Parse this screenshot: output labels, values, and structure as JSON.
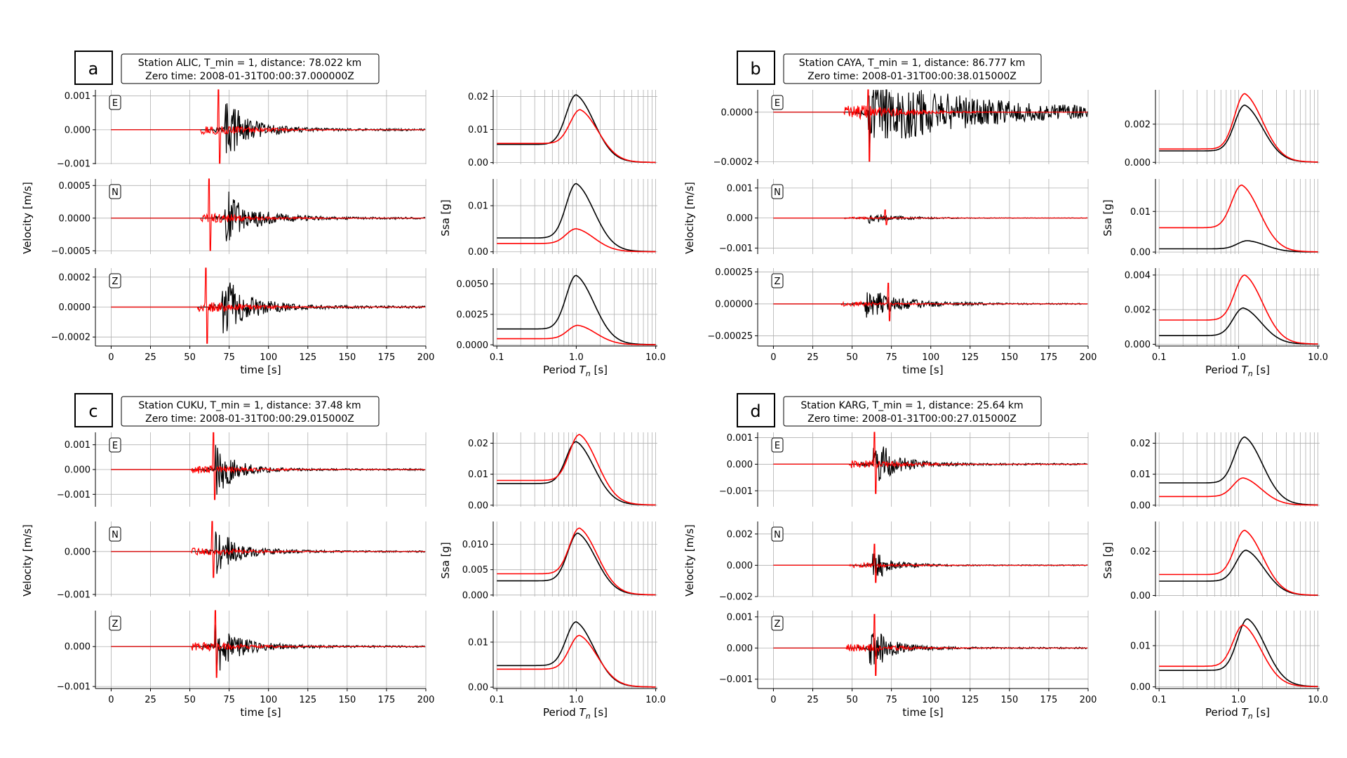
{
  "common": {
    "velocity_ylabel": "Velocity [m/s]",
    "ssa_ylabel": "Ssa [g]",
    "time_xlabel": "time [s]",
    "period_xlabel_pre": "Period ",
    "period_xlabel_sym": "T",
    "period_xlabel_sub": "n",
    "period_xlabel_post": " [s]",
    "time_xticks": [
      "0",
      "25",
      "50",
      "75",
      "100",
      "125",
      "150",
      "175",
      "200"
    ],
    "period_xticks": [
      "0.1",
      "1.0",
      "10.0"
    ],
    "colors": {
      "observed": "#000000",
      "synthetic": "#ff0000",
      "grid": "#b0b0b0"
    }
  },
  "chart_data": [
    {
      "type": "line",
      "panel_letter": "a",
      "title_line1": "Station ALIC,   T_min = 1,   distance: 78.022 km",
      "title_line2": "Zero time: 2008-01-31T00:00:37.000000Z",
      "components": [
        {
          "label": "E",
          "yticks": [
            "0.001",
            "0.000",
            "−0.001"
          ],
          "ylim": [
            -0.00102,
            0.00118
          ],
          "amp": 0.0009,
          "onset": 72,
          "red_spike": 68,
          "duration": 50,
          "xlim": [
            -10,
            200
          ],
          "spectrum": {
            "yticks": [
              "0.02",
              "0.01",
              "0.00"
            ],
            "ylim": [
              -0.0005,
              0.022
            ],
            "black": {
              "base": 0.0055,
              "peak": 0.0205,
              "period": 1.0
            },
            "red": {
              "base": 0.0058,
              "peak": 0.016,
              "period": 1.12
            }
          }
        },
        {
          "label": "N",
          "yticks": [
            "0.0005",
            "0.0000",
            "−0.0005"
          ],
          "ylim": [
            -0.00055,
            0.0006
          ],
          "amp": 0.00045,
          "onset": 72,
          "red_spike": 62,
          "duration": 55,
          "xlim": [
            -10,
            200
          ],
          "spectrum": {
            "yticks": [
              "0.01",
              "0.00"
            ],
            "ylim": [
              -0.0005,
              0.0158
            ],
            "black": {
              "base": 0.003,
              "peak": 0.0148,
              "period": 1.0
            },
            "red": {
              "base": 0.0018,
              "peak": 0.005,
              "period": 1.0
            }
          }
        },
        {
          "label": "Z",
          "yticks": [
            "0.0002",
            "0.0000",
            "−0.0002"
          ],
          "ylim": [
            -0.00026,
            0.00026
          ],
          "amp": 0.00022,
          "onset": 70,
          "red_spike": 60,
          "duration": 55,
          "xlim": [
            -10,
            200
          ],
          "spectrum": {
            "yticks": [
              "0.0050",
              "0.0025",
              "0.0000"
            ],
            "ylim": [
              -0.0001,
              0.0063
            ],
            "black": {
              "base": 0.0013,
              "peak": 0.0057,
              "period": 1.0
            },
            "red": {
              "base": 0.0005,
              "peak": 0.0016,
              "period": 1.05
            }
          }
        }
      ]
    },
    {
      "type": "line",
      "panel_letter": "b",
      "title_line1": "Station CAYA,   T_min = 1,   distance: 86.777 km",
      "title_line2": "Zero time: 2008-01-31T00:00:38.015000Z",
      "components": [
        {
          "label": "E",
          "yticks": [
            "0.0000",
            "−0.0002"
          ],
          "ylim": [
            -0.00021,
            9e-05
          ],
          "amp": 0.00018,
          "onset": 60,
          "red_spike": 60,
          "duration": 200,
          "xlim": [
            -10,
            200
          ],
          "spectrum": {
            "yticks": [
              "0.002",
              "0.000"
            ],
            "ylim": [
              -0.0001,
              0.0038
            ],
            "black": {
              "base": 0.0006,
              "peak": 0.003,
              "period": 1.2
            },
            "red": {
              "base": 0.0007,
              "peak": 0.0036,
              "period": 1.2
            }
          }
        },
        {
          "label": "N",
          "yticks": [
            "0.001",
            "0.000",
            "−0.001"
          ],
          "ylim": [
            -0.0012,
            0.0013
          ],
          "amp": 0.0002,
          "onset": 60,
          "red_spike": 71,
          "duration": 60,
          "xlim": [
            -10,
            200
          ],
          "spectrum": {
            "yticks": [
              "0.01",
              "0.00"
            ],
            "ylim": [
              -0.0005,
              0.018
            ],
            "black": {
              "base": 0.0008,
              "peak": 0.0028,
              "period": 1.3
            },
            "red": {
              "base": 0.006,
              "peak": 0.0165,
              "period": 1.1
            }
          }
        },
        {
          "label": "Z",
          "yticks": [
            "0.00025",
            "0.00000",
            "−0.00025"
          ],
          "ylim": [
            -0.00033,
            0.00028
          ],
          "amp": 0.00012,
          "onset": 58,
          "red_spike": 73,
          "duration": 80,
          "xlim": [
            -10,
            200
          ],
          "spectrum": {
            "yticks": [
              "0.004",
              "0.002",
              "0.000"
            ],
            "ylim": [
              -0.0001,
              0.0044
            ],
            "black": {
              "base": 0.0005,
              "peak": 0.0021,
              "period": 1.15
            },
            "red": {
              "base": 0.0014,
              "peak": 0.004,
              "period": 1.2
            }
          }
        }
      ]
    },
    {
      "type": "line",
      "panel_letter": "c",
      "title_line1": "Station CUKU,   T_min = 1,   distance: 37.48 km",
      "title_line2": "Zero time: 2008-01-31T00:00:29.015000Z",
      "components": [
        {
          "label": "E",
          "yticks": [
            "0.001",
            "0.000",
            "−0.001"
          ],
          "ylim": [
            -0.0015,
            0.0015
          ],
          "amp": 0.0011,
          "onset": 66,
          "red_spike": 65,
          "duration": 40,
          "xlim": [
            -10,
            200
          ],
          "spectrum": {
            "yticks": [
              "0.02",
              "0.01",
              "0.00"
            ],
            "ylim": [
              -0.0005,
              0.0235
            ],
            "black": {
              "base": 0.007,
              "peak": 0.0205,
              "period": 1.0
            },
            "red": {
              "base": 0.008,
              "peak": 0.0228,
              "period": 1.1
            }
          }
        },
        {
          "label": "N",
          "yticks": [
            "0.000",
            "−0.001"
          ],
          "ylim": [
            -0.00105,
            0.0007
          ],
          "amp": 0.00055,
          "onset": 66,
          "red_spike": 64,
          "duration": 50,
          "xlim": [
            -10,
            200
          ],
          "spectrum": {
            "yticks": [
              "0.010",
              "0.005",
              "0.000"
            ],
            "ylim": [
              -0.0003,
              0.0145
            ],
            "black": {
              "base": 0.0028,
              "peak": 0.0122,
              "period": 1.05
            },
            "red": {
              "base": 0.0042,
              "peak": 0.0132,
              "period": 1.1
            }
          }
        },
        {
          "label": "Z",
          "yticks": [
            "0.000",
            "−0.001"
          ],
          "ylim": [
            -0.00105,
            0.0009
          ],
          "amp": 0.0007,
          "onset": 66,
          "red_spike": 66,
          "duration": 50,
          "xlim": [
            -10,
            200
          ],
          "spectrum": {
            "yticks": [
              "0.01",
              "0.00"
            ],
            "ylim": [
              -0.0003,
              0.017
            ],
            "black": {
              "base": 0.0048,
              "peak": 0.0145,
              "period": 1.0
            },
            "red": {
              "base": 0.004,
              "peak": 0.0115,
              "period": 1.1
            }
          }
        }
      ]
    },
    {
      "type": "line",
      "panel_letter": "d",
      "title_line1": "Station KARG,   T_min = 1,   distance: 25.64 km",
      "title_line2": "Zero time: 2008-01-31T00:00:27.015000Z",
      "components": [
        {
          "label": "E",
          "yticks": [
            "0.001",
            "0.000",
            "−0.001"
          ],
          "ylim": [
            -0.0016,
            0.0012
          ],
          "amp": 0.001,
          "onset": 63,
          "red_spike": 64,
          "duration": 45,
          "xlim": [
            -10,
            200
          ],
          "spectrum": {
            "yticks": [
              "0.02",
              "0.01",
              "0.00"
            ],
            "ylim": [
              -0.0005,
              0.0235
            ],
            "black": {
              "base": 0.0072,
              "peak": 0.022,
              "period": 1.2
            },
            "red": {
              "base": 0.0028,
              "peak": 0.0088,
              "period": 1.15
            }
          }
        },
        {
          "label": "N",
          "yticks": [
            "0.002",
            "0.000",
            "−0.002"
          ],
          "ylim": [
            -0.002,
            0.0028
          ],
          "amp": 0.001,
          "onset": 63,
          "red_spike": 64,
          "duration": 40,
          "xlim": [
            -10,
            200
          ],
          "spectrum": {
            "yticks": [
              "0.02",
              "0.00"
            ],
            "ylim": [
              -0.0005,
              0.0335
            ],
            "black": {
              "base": 0.0065,
              "peak": 0.0205,
              "period": 1.25
            },
            "red": {
              "base": 0.0095,
              "peak": 0.0295,
              "period": 1.2
            }
          }
        },
        {
          "label": "Z",
          "yticks": [
            "0.001",
            "0.000",
            "−0.001"
          ],
          "ylim": [
            -0.0013,
            0.0012
          ],
          "amp": 0.0008,
          "onset": 61,
          "red_spike": 64,
          "duration": 40,
          "xlim": [
            -10,
            200
          ],
          "spectrum": {
            "yticks": [
              "0.01",
              "0.00"
            ],
            "ylim": [
              -0.0004,
              0.0185
            ],
            "black": {
              "base": 0.004,
              "peak": 0.0165,
              "period": 1.3
            },
            "red": {
              "base": 0.005,
              "peak": 0.015,
              "period": 1.15
            }
          }
        }
      ]
    }
  ]
}
